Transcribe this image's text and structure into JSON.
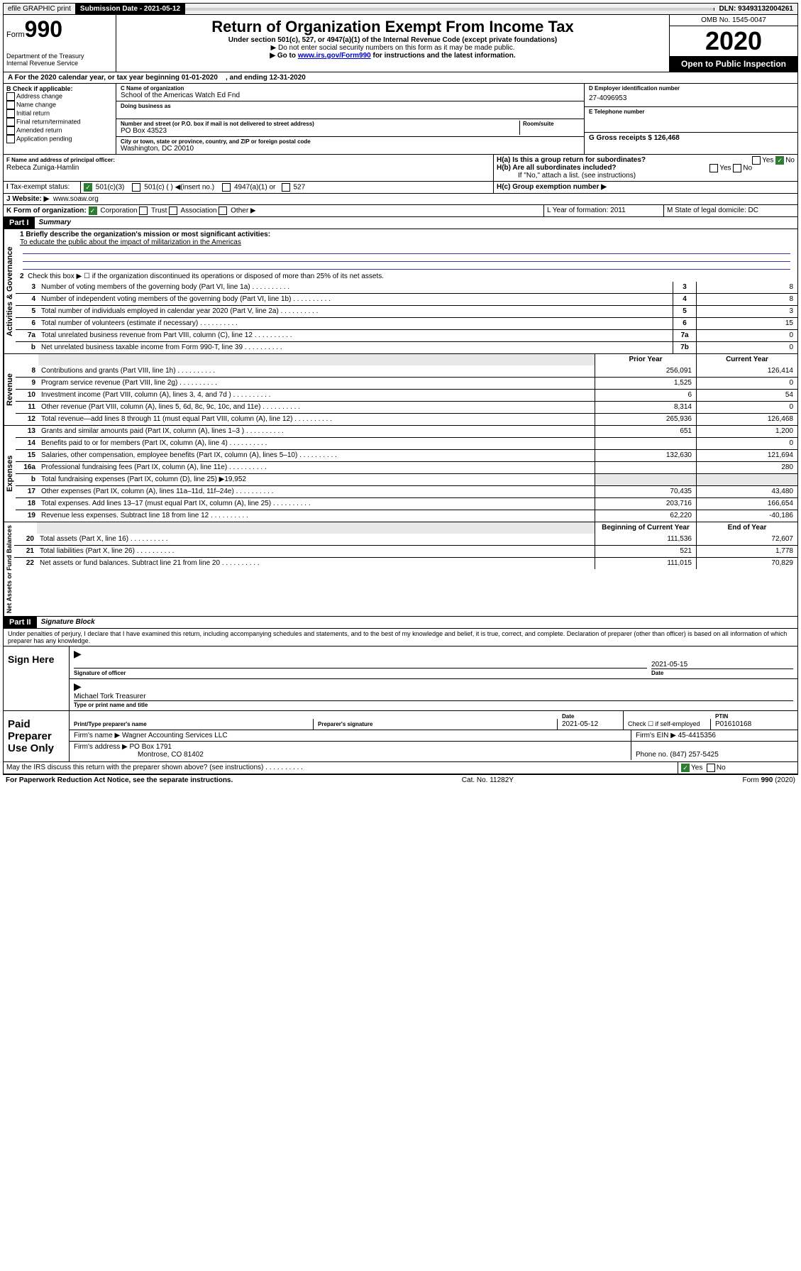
{
  "topbar": {
    "efile": "efile GRAPHIC print",
    "submission_label": "Submission Date - 2021-05-12",
    "dln": "DLN: 93493132004261"
  },
  "header": {
    "form_word": "Form",
    "form_num": "990",
    "dept": "Department of the Treasury",
    "irs": "Internal Revenue Service",
    "title": "Return of Organization Exempt From Income Tax",
    "subtitle": "Under section 501(c), 527, or 4947(a)(1) of the Internal Revenue Code (except private foundations)",
    "note1": "▶ Do not enter social security numbers on this form as it may be made public.",
    "note2_pre": "▶ Go to ",
    "note2_link": "www.irs.gov/Form990",
    "note2_post": " for instructions and the latest information.",
    "omb": "OMB No. 1545-0047",
    "year": "2020",
    "open": "Open to Public Inspection"
  },
  "period": {
    "text_a": "A For the 2020 calendar year, or tax year beginning 01-01-2020",
    "text_b": ", and ending 12-31-2020"
  },
  "boxB": {
    "title": "B Check if applicable:",
    "items": [
      "Address change",
      "Name change",
      "Initial return",
      "Final return/terminated",
      "Amended return",
      "Application pending"
    ]
  },
  "boxC": {
    "name_label": "C Name of organization",
    "name": "School of the Americas Watch Ed Fnd",
    "dba_label": "Doing business as",
    "addr_label": "Number and street (or P.O. box if mail is not delivered to street address)",
    "room_label": "Room/suite",
    "addr": "PO Box 43523",
    "city_label": "City or town, state or province, country, and ZIP or foreign postal code",
    "city": "Washington, DC  20010"
  },
  "boxD": {
    "label": "D Employer identification number",
    "val": "27-4096953"
  },
  "boxE": {
    "label": "E Telephone number",
    "val": ""
  },
  "boxG": {
    "label": "G Gross receipts $ 126,468"
  },
  "boxF": {
    "label": "F  Name and address of principal officer:",
    "val": "Rebeca Zuniga-Hamlin"
  },
  "boxH": {
    "a_label": "H(a)  Is this a group return for subordinates?",
    "b_label": "H(b)  Are all subordinates included?",
    "b_note": "If \"No,\" attach a list. (see instructions)",
    "c_label": "H(c)  Group exemption number ▶",
    "yes": "Yes",
    "no": "No"
  },
  "boxI": {
    "label": "Tax-exempt status:",
    "opt1": "501(c)(3)",
    "opt2": "501(c) (  ) ◀(insert no.)",
    "opt3": "4947(a)(1) or",
    "opt4": "527"
  },
  "boxJ": {
    "label": "Website: ▶",
    "val": "www.soaw.org"
  },
  "boxK": {
    "label": "K Form of organization:",
    "opts": [
      "Corporation",
      "Trust",
      "Association",
      "Other ▶"
    ]
  },
  "boxL": {
    "label": "L Year of formation: 2011"
  },
  "boxM": {
    "label": "M State of legal domicile: DC"
  },
  "part1": {
    "hdr": "Part I",
    "title": "Summary",
    "tab_gov": "Activities & Governance",
    "tab_rev": "Revenue",
    "tab_exp": "Expenses",
    "tab_net": "Net Assets or Fund Balances",
    "l1_label": "1  Briefly describe the organization's mission or most significant activities:",
    "l1_val": "To educate the public about the impact of militarization in the Americas",
    "l2": "Check this box ▶ ☐  if the organization discontinued its operations or disposed of more than 25% of its net assets.",
    "lines_gov": [
      {
        "n": "3",
        "d": "Number of voting members of the governing body (Part VI, line 1a)",
        "b": "3",
        "v": "8"
      },
      {
        "n": "4",
        "d": "Number of independent voting members of the governing body (Part VI, line 1b)",
        "b": "4",
        "v": "8"
      },
      {
        "n": "5",
        "d": "Total number of individuals employed in calendar year 2020 (Part V, line 2a)",
        "b": "5",
        "v": "3"
      },
      {
        "n": "6",
        "d": "Total number of volunteers (estimate if necessary)",
        "b": "6",
        "v": "15"
      },
      {
        "n": "7a",
        "d": "Total unrelated business revenue from Part VIII, column (C), line 12",
        "b": "7a",
        "v": "0"
      },
      {
        "n": "b",
        "d": "Net unrelated business taxable income from Form 990-T, line 39",
        "b": "7b",
        "v": "0"
      }
    ],
    "col_prior": "Prior Year",
    "col_curr": "Current Year",
    "lines_rev": [
      {
        "n": "8",
        "d": "Contributions and grants (Part VIII, line 1h)",
        "p": "256,091",
        "c": "126,414"
      },
      {
        "n": "9",
        "d": "Program service revenue (Part VIII, line 2g)",
        "p": "1,525",
        "c": "0"
      },
      {
        "n": "10",
        "d": "Investment income (Part VIII, column (A), lines 3, 4, and 7d )",
        "p": "6",
        "c": "54"
      },
      {
        "n": "11",
        "d": "Other revenue (Part VIII, column (A), lines 5, 6d, 8c, 9c, 10c, and 11e)",
        "p": "8,314",
        "c": "0"
      },
      {
        "n": "12",
        "d": "Total revenue—add lines 8 through 11 (must equal Part VIII, column (A), line 12)",
        "p": "265,936",
        "c": "126,468"
      }
    ],
    "lines_exp": [
      {
        "n": "13",
        "d": "Grants and similar amounts paid (Part IX, column (A), lines 1–3 )",
        "p": "651",
        "c": "1,200"
      },
      {
        "n": "14",
        "d": "Benefits paid to or for members (Part IX, column (A), line 4)",
        "p": "",
        "c": "0"
      },
      {
        "n": "15",
        "d": "Salaries, other compensation, employee benefits (Part IX, column (A), lines 5–10)",
        "p": "132,630",
        "c": "121,694"
      },
      {
        "n": "16a",
        "d": "Professional fundraising fees (Part IX, column (A), line 11e)",
        "p": "",
        "c": "280"
      },
      {
        "n": "b",
        "d": "Total fundraising expenses (Part IX, column (D), line 25) ▶19,952",
        "p": "",
        "c": "",
        "gray": true
      },
      {
        "n": "17",
        "d": "Other expenses (Part IX, column (A), lines 11a–11d, 11f–24e)",
        "p": "70,435",
        "c": "43,480"
      },
      {
        "n": "18",
        "d": "Total expenses. Add lines 13–17 (must equal Part IX, column (A), line 25)",
        "p": "203,716",
        "c": "166,654"
      },
      {
        "n": "19",
        "d": "Revenue less expenses. Subtract line 18 from line 12",
        "p": "62,220",
        "c": "-40,186"
      }
    ],
    "col_beg": "Beginning of Current Year",
    "col_end": "End of Year",
    "lines_net": [
      {
        "n": "20",
        "d": "Total assets (Part X, line 16)",
        "p": "111,536",
        "c": "72,607"
      },
      {
        "n": "21",
        "d": "Total liabilities (Part X, line 26)",
        "p": "521",
        "c": "1,778"
      },
      {
        "n": "22",
        "d": "Net assets or fund balances. Subtract line 21 from line 20",
        "p": "111,015",
        "c": "70,829"
      }
    ]
  },
  "part2": {
    "hdr": "Part II",
    "title": "Signature Block",
    "decl": "Under penalties of perjury, I declare that I have examined this return, including accompanying schedules and statements, and to the best of my knowledge and belief, it is true, correct, and complete. Declaration of preparer (other than officer) is based on all information of which preparer has any knowledge.",
    "sign_here": "Sign Here",
    "sig_officer_lbl": "Signature of officer",
    "date_lbl": "Date",
    "sig_date": "2021-05-15",
    "officer_name": "Michael Tork  Treasurer",
    "type_name_lbl": "Type or print name and title",
    "paid": "Paid Preparer Use Only",
    "prep_name_lbl": "Print/Type preparer's name",
    "prep_sig_lbl": "Preparer's signature",
    "prep_date": "2021-05-12",
    "self_emp": "Check ☐ if self-employed",
    "ptin_lbl": "PTIN",
    "ptin": "P01610168",
    "firm_name_lbl": "Firm's name    ▶",
    "firm_name": "Wagner Accounting Services LLC",
    "firm_ein_lbl": "Firm's EIN ▶",
    "firm_ein": "45-4415356",
    "firm_addr_lbl": "Firm's address ▶",
    "firm_addr": "PO Box 1791",
    "firm_city": "Montrose, CO  81402",
    "phone_lbl": "Phone no. (847) 257-5425",
    "discuss": "May the IRS discuss this return with the preparer shown above? (see instructions)",
    "yes": "Yes",
    "no": "No"
  },
  "footer": {
    "pra": "For Paperwork Reduction Act Notice, see the separate instructions.",
    "cat": "Cat. No. 11282Y",
    "form": "Form 990 (2020)"
  }
}
